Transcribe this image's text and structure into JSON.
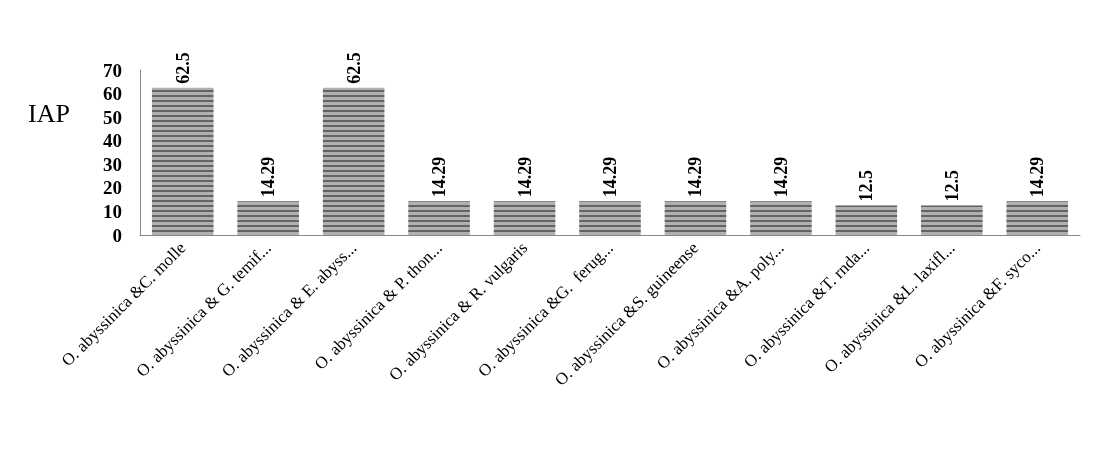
{
  "chart_data": {
    "type": "bar",
    "ylabel": "IAP",
    "categories": [
      "O. abyssinica &C. molle",
      "O. abyssinica & G. temif...",
      "O. abyssinica & E. abyss...",
      "O. abyssinica & P. thon...",
      "O. abyssinica & R. vulgaris",
      "O. abyssinica &G.  ferug...",
      "O. abyssinica &S. guineense",
      "O. abyssinica &A. poly...",
      "O. abyssinica &T. rnda...",
      "O. abyssinica &L. laxifl...",
      "O. abyssinica &F. syco..."
    ],
    "values": [
      62.5,
      14.29,
      62.5,
      14.29,
      14.29,
      14.29,
      14.29,
      14.29,
      12.5,
      12.5,
      14.29
    ],
    "color": "#b0b0b0",
    "ylim": [
      0,
      70
    ],
    "yticks": [
      0,
      10,
      20,
      30,
      40,
      50,
      60,
      70
    ],
    "grid": false,
    "data_labels": true
  }
}
